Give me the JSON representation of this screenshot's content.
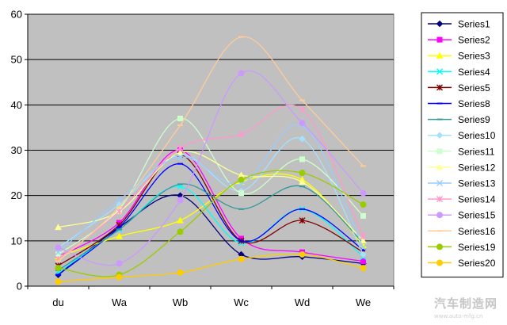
{
  "chart_data": {
    "type": "line",
    "categories": [
      "du",
      "Wa",
      "Wb",
      "Wc",
      "Wd",
      "We"
    ],
    "ylim": [
      0,
      60
    ],
    "yticks": [
      0,
      10,
      20,
      30,
      40,
      50,
      60
    ],
    "grid": true,
    "plot_background": "#c0c0c0",
    "legend_position": "right",
    "series": [
      {
        "name": "Series1",
        "color": "#000080",
        "marker": "diamond",
        "values": [
          2.5,
          13,
          20,
          7,
          6.5,
          5
        ]
      },
      {
        "name": "Series2",
        "color": "#ff00ff",
        "marker": "square",
        "values": [
          6.5,
          14,
          30,
          10.5,
          7.5,
          5.5
        ]
      },
      {
        "name": "Series3",
        "color": "#ffff00",
        "marker": "triangle",
        "values": [
          6.5,
          11,
          14.5,
          23,
          23.5,
          9
        ]
      },
      {
        "name": "Series4",
        "color": "#00ffff",
        "marker": "cross",
        "values": [
          3,
          12.5,
          22,
          9.5,
          17,
          6.5
        ]
      },
      {
        "name": "Series5",
        "color": "#800000",
        "marker": "star",
        "values": [
          4.5,
          13.5,
          29,
          10,
          14.5,
          7.5
        ]
      },
      {
        "name": "Series8",
        "color": "#0000ff",
        "marker": "dash",
        "values": [
          2.5,
          13,
          27,
          10,
          17,
          8
        ]
      },
      {
        "name": "Series9",
        "color": "#339999",
        "marker": "dash",
        "values": [
          3.5,
          12.5,
          22.5,
          17,
          22,
          9.5
        ]
      },
      {
        "name": "Series10",
        "color": "#a6e0ff",
        "marker": "diamond",
        "values": [
          8.5,
          18,
          29,
          21,
          32.5,
          7
        ]
      },
      {
        "name": "Series11",
        "color": "#ccffcc",
        "marker": "square",
        "values": [
          7,
          17,
          37,
          20.5,
          28,
          15.5
        ]
      },
      {
        "name": "Series12",
        "color": "#ffff99",
        "marker": "triangle",
        "values": [
          13,
          16.5,
          29.5,
          24.5,
          23,
          10
        ]
      },
      {
        "name": "Series13",
        "color": "#99ccff",
        "marker": "cross",
        "values": [
          7.5,
          19,
          28.5,
          22.5,
          35.5,
          8.5
        ]
      },
      {
        "name": "Series14",
        "color": "#ff99cc",
        "marker": "star",
        "values": [
          6,
          16.5,
          30.5,
          33.5,
          39,
          11
        ]
      },
      {
        "name": "Series15",
        "color": "#cc99ff",
        "marker": "circle",
        "values": [
          8.5,
          5,
          19,
          47,
          36,
          20.5
        ]
      },
      {
        "name": "Series16",
        "color": "#ffcc99",
        "marker": "dash",
        "values": [
          5.5,
          17.5,
          35.5,
          55,
          41,
          26.5
        ]
      },
      {
        "name": "Series19",
        "color": "#99cc00",
        "marker": "circle",
        "values": [
          4,
          2.5,
          12,
          23.5,
          25,
          18
        ]
      },
      {
        "name": "Series20",
        "color": "#ffcc00",
        "marker": "circle",
        "values": [
          1,
          2,
          3,
          6,
          7,
          4
        ]
      }
    ]
  },
  "watermark": {
    "main": "汽车制造网",
    "sub": "www.auto-mfg.cn"
  }
}
